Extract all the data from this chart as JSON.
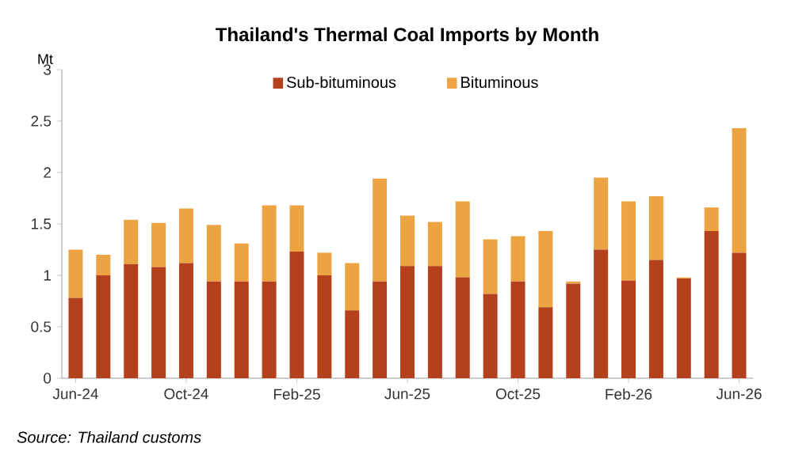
{
  "chart_data": {
    "type": "bar",
    "stacked": true,
    "title": "Thailand's Thermal Coal Imports by Month",
    "ylabel": "Mt",
    "categories": [
      "Jun-24",
      null,
      null,
      null,
      "Oct-24",
      null,
      null,
      null,
      "Feb-25",
      null,
      null,
      null,
      "Jun-25",
      null,
      null,
      null,
      "Oct-25",
      null,
      null,
      null,
      "Feb-26",
      null,
      null,
      null,
      "Jun-26"
    ],
    "series": [
      {
        "name": "Sub-bituminous",
        "color": "#b5401c",
        "values": [
          0.78,
          1.0,
          1.11,
          1.08,
          1.12,
          0.94,
          0.94,
          0.94,
          1.23,
          1.0,
          0.66,
          0.94,
          1.09,
          1.09,
          0.98,
          0.82,
          0.94,
          0.69,
          0.92,
          1.25,
          0.95,
          1.15,
          0.97,
          1.43,
          1.22
        ]
      },
      {
        "name": "Bituminous",
        "color": "#eca443",
        "values": [
          0.47,
          0.2,
          0.43,
          0.43,
          0.53,
          0.55,
          0.37,
          0.74,
          0.45,
          0.22,
          0.46,
          1.0,
          0.49,
          0.43,
          0.74,
          0.53,
          0.44,
          0.74,
          0.02,
          0.7,
          0.77,
          0.62,
          0.01,
          0.23,
          1.21
        ]
      }
    ],
    "ylim": [
      0,
      3
    ],
    "yticks": [
      0,
      0.5,
      1,
      1.5,
      2,
      2.5,
      3
    ],
    "grid": false,
    "legend": "top",
    "annotations": [
      "Source: Thailand customs"
    ]
  }
}
